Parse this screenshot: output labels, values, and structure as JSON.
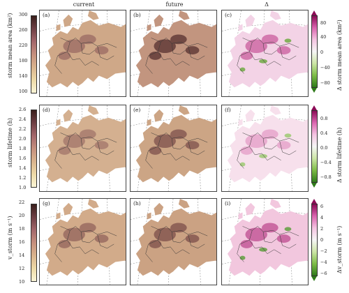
{
  "columns": [
    "current",
    "future",
    "Δ"
  ],
  "rows": [
    {
      "ylabel": "storm mean area (km²)",
      "dlabel": "Δ storm mean area (km²)",
      "ticks": [
        "300",
        "260",
        "220",
        "180",
        "140",
        "100"
      ],
      "dticks": [
        "80",
        "40",
        "0",
        "−40",
        "−80"
      ],
      "panels": [
        "(a)",
        "(b)",
        "(c)"
      ]
    },
    {
      "ylabel": "storm lifetime (h)",
      "dlabel": "Δ storm lifetime (h)",
      "ticks": [
        "2.6",
        "2.4",
        "2.2",
        "2.0",
        "1.8",
        "1.6",
        "1.4",
        "1.2",
        "1.0"
      ],
      "dticks": [
        "0.8",
        "0.4",
        "0.0",
        "−0.4",
        "−0.8"
      ],
      "panels": [
        "(d)",
        "(e)",
        "(f)"
      ]
    },
    {
      "ylabel": "v_storm (m s⁻¹)",
      "dlabel": "Δv_storm (m s⁻¹)",
      "ticks": [
        "22",
        "20",
        "18",
        "16",
        "14",
        "12",
        "10"
      ],
      "dticks": [
        "6",
        "4",
        "2",
        "0",
        "−2",
        "−4",
        "−6"
      ],
      "panels": [
        "(g)",
        "(h)",
        "(i)"
      ]
    }
  ],
  "colors": {
    "seq": [
      "#fbf5d6",
      "#ecd9a6",
      "#d9b38d",
      "#c58f7d",
      "#a3676b",
      "#6e3f44",
      "#3a1f1c"
    ],
    "div": [
      "#2f7a1a",
      "#7ebc48",
      "#cde6a7",
      "#f6f6f6",
      "#f5c4e2",
      "#db66b0",
      "#8b0b56"
    ]
  }
}
